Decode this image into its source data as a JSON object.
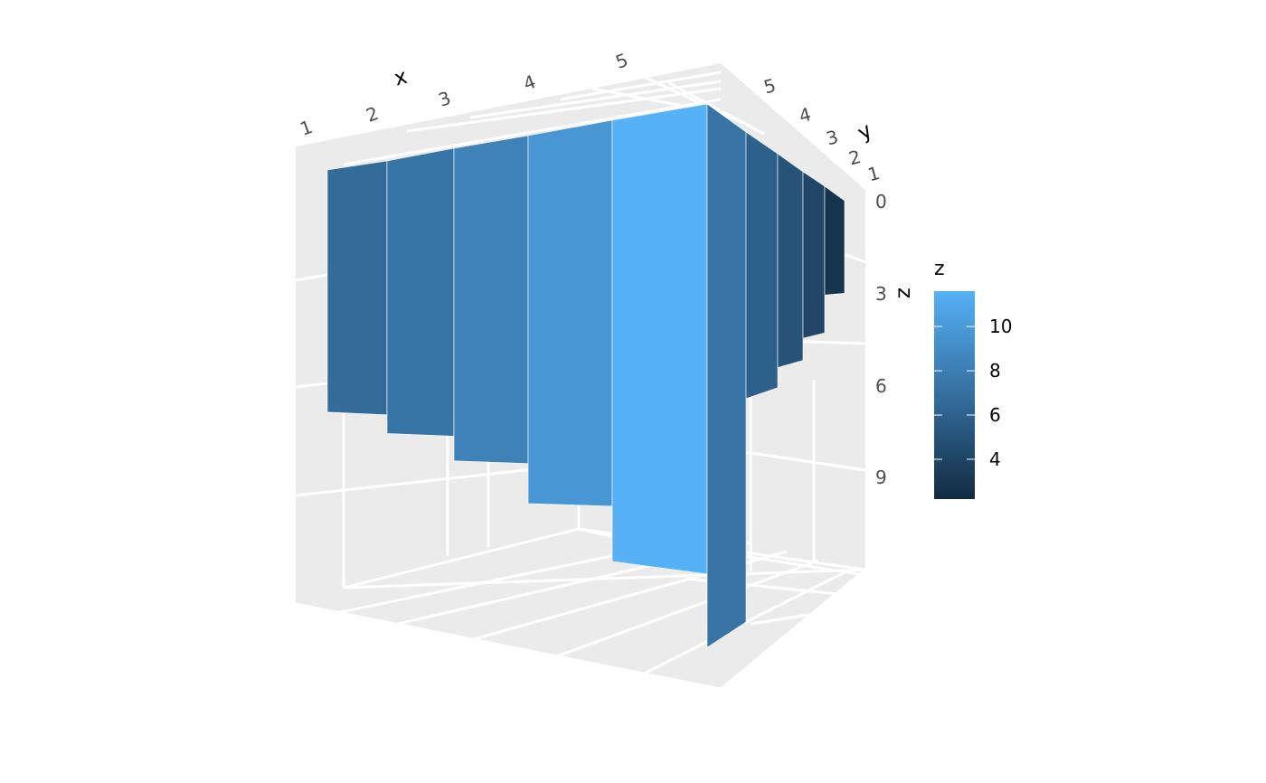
{
  "chart_data": {
    "type": "bar3d",
    "title": "",
    "xlabel": "x",
    "ylabel": "y",
    "zlabel": "z",
    "x_ticks": [
      "1",
      "2",
      "3",
      "4",
      "5"
    ],
    "y_ticks": [
      "1",
      "2",
      "3",
      "4",
      "5"
    ],
    "z_ticks": [
      "0",
      "3",
      "6",
      "9"
    ],
    "z_range": [
      0,
      11.6
    ],
    "grid": true,
    "panel_color": "#ebebeb",
    "bars_front_row": [
      {
        "x": 1,
        "y": 5,
        "z": 6.7
      },
      {
        "x": 2,
        "y": 5,
        "z": 7.4
      },
      {
        "x": 3,
        "y": 5,
        "z": 8.3
      },
      {
        "x": 4,
        "y": 5,
        "z": 9.7
      },
      {
        "x": 5,
        "y": 5,
        "z": 11.6
      }
    ],
    "bars_side_row": [
      {
        "x": 5,
        "y": 4,
        "z": 7.3
      },
      {
        "x": 5,
        "y": 3,
        "z": 5.9
      },
      {
        "x": 5,
        "y": 2,
        "z": 5.0
      },
      {
        "x": 5,
        "y": 1,
        "z": 4.1
      },
      {
        "x": 5,
        "y": 0,
        "z": 2.8
      }
    ],
    "legend": {
      "title": "z",
      "position": "right",
      "labels": [
        "10",
        "8",
        "6",
        "4"
      ],
      "label_values": [
        10,
        8,
        6,
        4
      ],
      "min": 2.2,
      "max": 11.6,
      "low_color": "#132b43",
      "high_color": "#56b1f7"
    }
  }
}
